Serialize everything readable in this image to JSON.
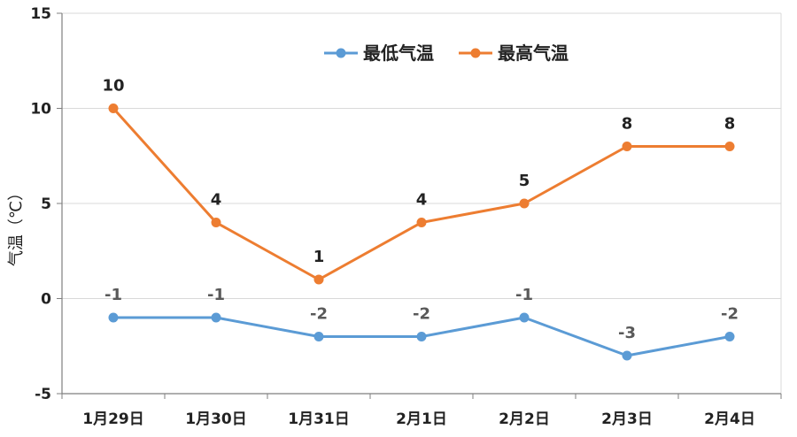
{
  "chart_data": {
    "type": "line",
    "title": "",
    "xlabel": "",
    "ylabel": "气温（℃）",
    "ylim": [
      -5,
      15
    ],
    "yticks": [
      -5,
      0,
      5,
      10,
      15
    ],
    "yticks_text": [
      "-5",
      "0",
      "5",
      "10",
      "15"
    ],
    "grid": true,
    "legend_position": "top-right",
    "categories": [
      "1月29日",
      "1月30日",
      "1月31日",
      "2月1日",
      "2月2日",
      "2月3日",
      "2月4日"
    ],
    "series": [
      {
        "name": "最低气温",
        "color": "#5B9BD5",
        "values": [
          -1,
          -1,
          -2,
          -2,
          -1,
          -3,
          -2
        ],
        "labels": [
          "-1",
          "-1",
          "-2",
          "-2",
          "-1",
          "-3",
          "-2"
        ]
      },
      {
        "name": "最高气温",
        "color": "#ED7D31",
        "values": [
          10,
          4,
          1,
          4,
          5,
          8,
          8
        ],
        "labels": [
          "10",
          "4",
          "1",
          "4",
          "5",
          "8",
          "8"
        ]
      }
    ]
  }
}
